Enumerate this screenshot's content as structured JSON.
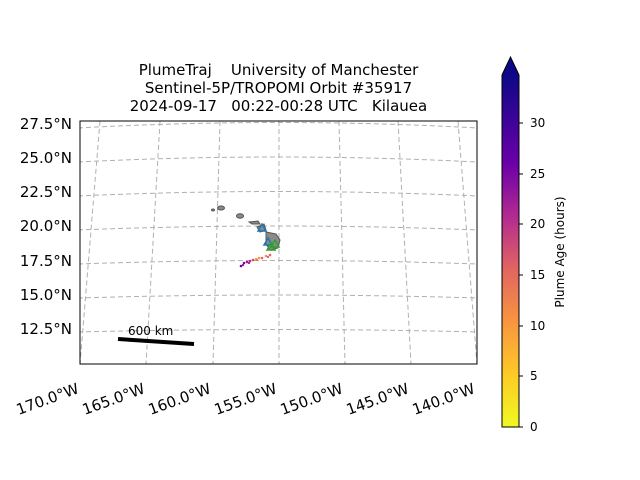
{
  "title": {
    "line1": "PlumeTraj    University of Manchester",
    "line2": "Sentinel-5P/TROPOMI Orbit #35917",
    "line3": "2024-09-17   00:22-00:28 UTC   Kilauea"
  },
  "lat_labels": [
    "27.5°N",
    "25.0°N",
    "22.5°N",
    "20.0°N",
    "17.5°N",
    "15.0°N",
    "12.5°N"
  ],
  "lon_labels": [
    "170.0°W",
    "165.0°W",
    "160.0°W",
    "155.0°W",
    "150.0°W",
    "145.0°W",
    "140.0°W"
  ],
  "colorbar": {
    "label": "Plume Age (hours)",
    "ticks": [
      "0",
      "5",
      "10",
      "15",
      "20",
      "25",
      "30"
    ],
    "min": 0,
    "max": 33,
    "colormap": "plasma_r",
    "extend": "max",
    "colors": [
      "#f0f921",
      "#fca636",
      "#e16462",
      "#b12a90",
      "#6a00a8",
      "#0d0887"
    ]
  },
  "scale_bar": {
    "label": "600 km"
  },
  "map": {
    "grid": true,
    "gridline_style": "dashed gray",
    "coastline_color": "#808080",
    "volcano": "Kilauea"
  }
}
